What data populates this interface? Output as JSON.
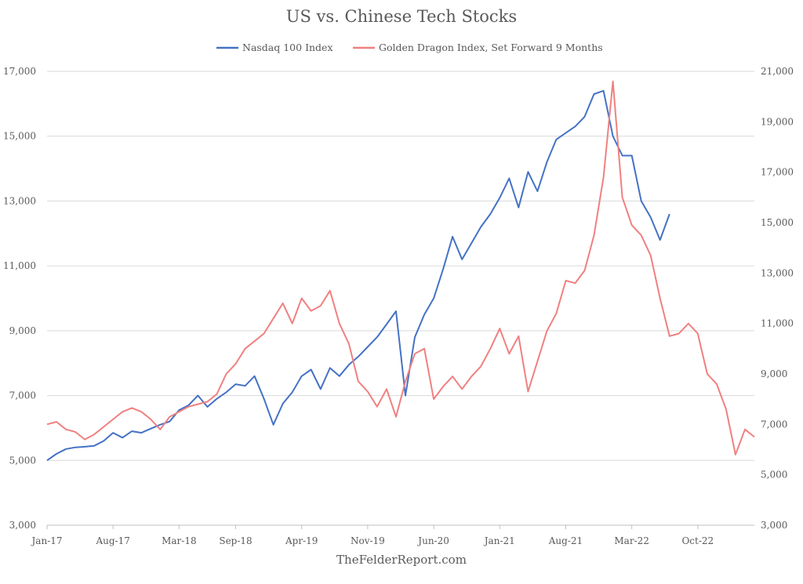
{
  "chart_data": {
    "type": "line",
    "title": "US vs. Chinese Tech Stocks",
    "source": "TheFelderReport.com",
    "legend_position": "top",
    "grid": true,
    "x_ticks": [
      "Jan-17",
      "Aug-17",
      "Mar-18",
      "Sep-18",
      "Apr-19",
      "Nov-19",
      "Jun-20",
      "Jan-21",
      "Aug-21",
      "Mar-22",
      "Oct-22"
    ],
    "x_range": [
      "2017-01",
      "2023-04"
    ],
    "y_left": {
      "ylim": [
        3000,
        17000
      ],
      "ticks": [
        "3,000",
        "5,000",
        "7,000",
        "9,000",
        "11,000",
        "13,000",
        "15,000",
        "17,000"
      ]
    },
    "y_right": {
      "ylim": [
        3000,
        21000
      ],
      "ticks": [
        "3,000",
        "5,000",
        "7,000",
        "9,000",
        "11,000",
        "13,000",
        "15,000",
        "17,000",
        "19,000",
        "21,000"
      ]
    },
    "series": [
      {
        "name": "Nasdaq 100 Index",
        "axis": "left",
        "color": "#4472c4",
        "points": [
          [
            "2017-01",
            5000
          ],
          [
            "2017-02",
            5200
          ],
          [
            "2017-03",
            5350
          ],
          [
            "2017-04",
            5400
          ],
          [
            "2017-05",
            5420
          ],
          [
            "2017-06",
            5450
          ],
          [
            "2017-07",
            5600
          ],
          [
            "2017-08",
            5850
          ],
          [
            "2017-09",
            5700
          ],
          [
            "2017-10",
            5900
          ],
          [
            "2017-11",
            5850
          ],
          [
            "2017-12",
            5980
          ],
          [
            "2018-01",
            6100
          ],
          [
            "2018-02",
            6200
          ],
          [
            "2018-03",
            6550
          ],
          [
            "2018-04",
            6700
          ],
          [
            "2018-05",
            7000
          ],
          [
            "2018-06",
            6650
          ],
          [
            "2018-07",
            6900
          ],
          [
            "2018-08",
            7100
          ],
          [
            "2018-09",
            7350
          ],
          [
            "2018-10",
            7300
          ],
          [
            "2018-11",
            7600
          ],
          [
            "2018-12",
            6900
          ],
          [
            "2019-01",
            6100
          ],
          [
            "2019-02",
            6750
          ],
          [
            "2019-03",
            7100
          ],
          [
            "2019-04",
            7600
          ],
          [
            "2019-05",
            7800
          ],
          [
            "2019-06",
            7200
          ],
          [
            "2019-07",
            7850
          ],
          [
            "2019-08",
            7600
          ],
          [
            "2019-09",
            7950
          ],
          [
            "2019-10",
            8200
          ],
          [
            "2019-11",
            8500
          ],
          [
            "2019-12",
            8800
          ],
          [
            "2020-01",
            9200
          ],
          [
            "2020-02",
            9600
          ],
          [
            "2020-03",
            7000
          ],
          [
            "2020-04",
            8800
          ],
          [
            "2020-05",
            9500
          ],
          [
            "2020-06",
            10000
          ],
          [
            "2020-07",
            10900
          ],
          [
            "2020-08",
            11900
          ],
          [
            "2020-09",
            11200
          ],
          [
            "2020-10",
            11700
          ],
          [
            "2020-11",
            12200
          ],
          [
            "2020-12",
            12600
          ],
          [
            "2021-01",
            13100
          ],
          [
            "2021-02",
            13700
          ],
          [
            "2021-03",
            12800
          ],
          [
            "2021-04",
            13900
          ],
          [
            "2021-05",
            13300
          ],
          [
            "2021-06",
            14200
          ],
          [
            "2021-07",
            14900
          ],
          [
            "2021-08",
            15100
          ],
          [
            "2021-09",
            15300
          ],
          [
            "2021-10",
            15600
          ],
          [
            "2021-11",
            16300
          ],
          [
            "2021-12",
            16400
          ],
          [
            "2022-01",
            15000
          ],
          [
            "2022-02",
            14400
          ],
          [
            "2022-03",
            14400
          ],
          [
            "2022-04",
            13000
          ],
          [
            "2022-05",
            12500
          ],
          [
            "2022-06",
            11800
          ],
          [
            "2022-07",
            12600
          ]
        ]
      },
      {
        "name": "Golden Dragon Index, Set Forward 9 Months",
        "axis": "right",
        "color": "#f08080",
        "points": [
          [
            "2017-01",
            7000
          ],
          [
            "2017-02",
            7100
          ],
          [
            "2017-03",
            6800
          ],
          [
            "2017-04",
            6700
          ],
          [
            "2017-05",
            6400
          ],
          [
            "2017-06",
            6600
          ],
          [
            "2017-07",
            6900
          ],
          [
            "2017-08",
            7200
          ],
          [
            "2017-09",
            7500
          ],
          [
            "2017-10",
            7650
          ],
          [
            "2017-11",
            7500
          ],
          [
            "2017-12",
            7200
          ],
          [
            "2018-01",
            6800
          ],
          [
            "2018-02",
            7300
          ],
          [
            "2018-03",
            7500
          ],
          [
            "2018-04",
            7700
          ],
          [
            "2018-05",
            7800
          ],
          [
            "2018-06",
            7900
          ],
          [
            "2018-07",
            8200
          ],
          [
            "2018-08",
            9000
          ],
          [
            "2018-09",
            9400
          ],
          [
            "2018-10",
            10000
          ],
          [
            "2018-11",
            10300
          ],
          [
            "2018-12",
            10600
          ],
          [
            "2019-01",
            11200
          ],
          [
            "2019-02",
            11800
          ],
          [
            "2019-03",
            11000
          ],
          [
            "2019-04",
            12000
          ],
          [
            "2019-05",
            11500
          ],
          [
            "2019-06",
            11700
          ],
          [
            "2019-07",
            12300
          ],
          [
            "2019-08",
            11000
          ],
          [
            "2019-09",
            10200
          ],
          [
            "2019-10",
            8700
          ],
          [
            "2019-11",
            8300
          ],
          [
            "2019-12",
            7700
          ],
          [
            "2020-01",
            8400
          ],
          [
            "2020-02",
            7300
          ],
          [
            "2020-03",
            8700
          ],
          [
            "2020-04",
            9800
          ],
          [
            "2020-05",
            10000
          ],
          [
            "2020-06",
            8000
          ],
          [
            "2020-07",
            8500
          ],
          [
            "2020-08",
            8900
          ],
          [
            "2020-09",
            8400
          ],
          [
            "2020-10",
            8900
          ],
          [
            "2020-11",
            9300
          ],
          [
            "2020-12",
            10000
          ],
          [
            "2021-01",
            10800
          ],
          [
            "2021-02",
            9800
          ],
          [
            "2021-03",
            10500
          ],
          [
            "2021-04",
            8300
          ],
          [
            "2021-05",
            9500
          ],
          [
            "2021-06",
            10700
          ],
          [
            "2021-07",
            11400
          ],
          [
            "2021-08",
            12700
          ],
          [
            "2021-09",
            12600
          ],
          [
            "2021-10",
            13100
          ],
          [
            "2021-11",
            14500
          ],
          [
            "2021-12",
            16800
          ],
          [
            "2022-01",
            20600
          ],
          [
            "2022-02",
            16000
          ],
          [
            "2022-03",
            14900
          ],
          [
            "2022-04",
            14500
          ],
          [
            "2022-05",
            13700
          ],
          [
            "2022-06",
            12000
          ],
          [
            "2022-07",
            10500
          ],
          [
            "2022-08",
            10600
          ],
          [
            "2022-09",
            11000
          ],
          [
            "2022-10",
            10600
          ],
          [
            "2022-11",
            9000
          ],
          [
            "2022-12",
            8600
          ],
          [
            "2023-01",
            7600
          ],
          [
            "2023-02",
            5800
          ],
          [
            "2023-03",
            6800
          ],
          [
            "2023-04",
            6500
          ]
        ]
      }
    ]
  }
}
